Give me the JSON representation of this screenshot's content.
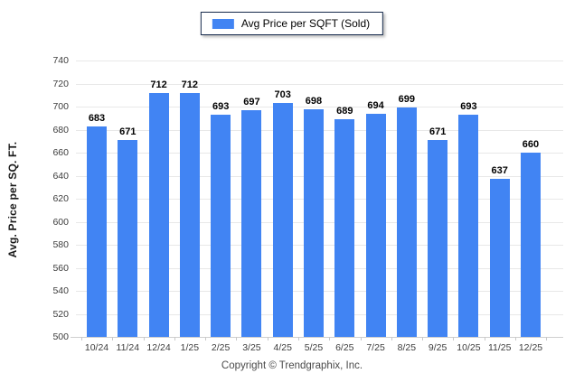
{
  "legend": {
    "label": "Avg Price per SQFT (Sold)"
  },
  "footer": {
    "text": "Copyright © Trendgraphix, Inc."
  },
  "chart_data": {
    "type": "bar",
    "title": "",
    "series_name": "Avg Price per SQFT (Sold)",
    "categories": [
      "10/24",
      "11/24",
      "12/24",
      "1/25",
      "2/25",
      "3/25",
      "4/25",
      "5/25",
      "6/25",
      "7/25",
      "8/25",
      "9/25",
      "10/25",
      "11/25",
      "12/25"
    ],
    "values": [
      683,
      671,
      712,
      712,
      693,
      697,
      703,
      698,
      689,
      694,
      699,
      671,
      693,
      637,
      660
    ],
    "xlabel": "",
    "ylabel": "Avg. Price per SQ. FT.",
    "ylim": [
      500,
      740
    ],
    "ytick_step": 20,
    "grid": true,
    "legend_position": "top-center",
    "bar_color": "#4184f3"
  },
  "colors": {
    "bar": "#4184f3",
    "gridline": "#e8e8e8",
    "baseline": "#cfcfcf",
    "legend_border": "#172b4d",
    "axis_text": "#3c3c3c",
    "value_text": "#000000",
    "footer_text": "#4a4a4a"
  }
}
